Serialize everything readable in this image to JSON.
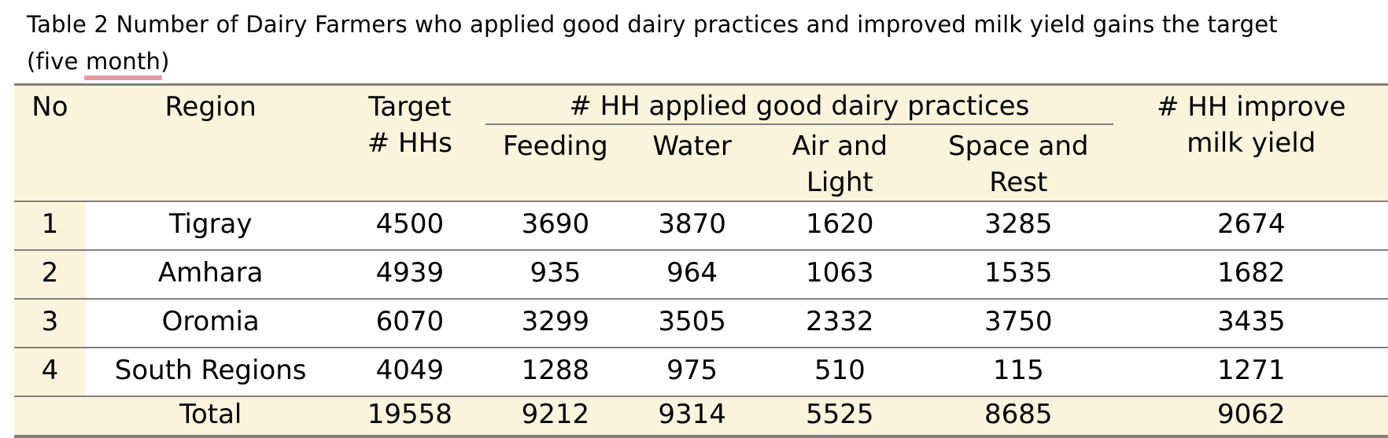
{
  "page": {
    "title_line1": "Table 2 Number of Dairy Farmers who applied good dairy practices and improved milk yield gains the target",
    "title_line2_pre": "(five ",
    "title_line2_underlined": "month",
    "title_line2_post": ")"
  },
  "colors": {
    "header_bg": "#FBF3DC",
    "table_border": "#7F7F7F",
    "spellcheck_underline": "#E29AA3",
    "text": "#000000",
    "row_bg": "#FFFFFF"
  },
  "table": {
    "header": {
      "no": "No",
      "region": "Region",
      "target_line1": "Target",
      "target_line2": "# HHs",
      "group": "# HH applied good dairy practices",
      "feeding": "Feeding",
      "water": "Water",
      "air_line1": "Air and",
      "air_line2": "Light",
      "space_line1": "Space and",
      "space_line2": "Rest",
      "improve_line1": "# HH improve",
      "improve_line2": "milk yield"
    },
    "rows": [
      {
        "no": "1",
        "region": "Tigray",
        "target": "4500",
        "feeding": "3690",
        "water": "3870",
        "air": "1620",
        "space": "3285",
        "improve": "2674"
      },
      {
        "no": "2",
        "region": "Amhara",
        "target": "4939",
        "feeding": "935",
        "water": "964",
        "air": "1063",
        "space": "1535",
        "improve": "1682"
      },
      {
        "no": "3",
        "region": "Oromia",
        "target": "6070",
        "feeding": "3299",
        "water": "3505",
        "air": "2332",
        "space": "3750",
        "improve": "3435"
      },
      {
        "no": "4",
        "region": "South Regions",
        "target": "4049",
        "feeding": "1288",
        "water": "975",
        "air": "510",
        "space": "115",
        "improve": "1271"
      }
    ],
    "total": {
      "label": "Total",
      "target": "19558",
      "feeding": "9212",
      "water": "9314",
      "air": "5525",
      "space": "8685",
      "improve": "9062"
    }
  }
}
